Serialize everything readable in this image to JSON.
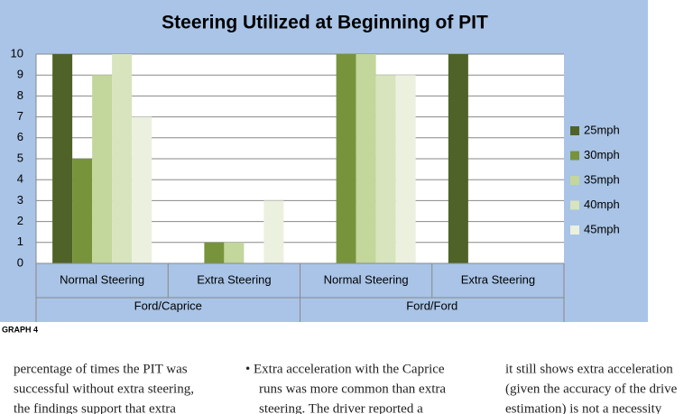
{
  "chart_data": {
    "type": "bar",
    "title": "Steering Utilized at Beginning of PIT",
    "categories": [
      "Normal Steering",
      "Extra Steering",
      "Normal Steering",
      "Extra Steering"
    ],
    "groups": [
      "Ford/Caprice",
      "Ford/Ford"
    ],
    "series": [
      {
        "name": "25mph",
        "color": "#4f6228",
        "values": [
          10,
          0,
          0,
          10
        ]
      },
      {
        "name": "30mph",
        "color": "#77933c",
        "values": [
          5,
          1,
          10,
          0
        ]
      },
      {
        "name": "35mph",
        "color": "#c3d69b",
        "values": [
          9,
          1,
          10,
          0
        ]
      },
      {
        "name": "40mph",
        "color": "#d7e4bd",
        "values": [
          10,
          0,
          9,
          0
        ]
      },
      {
        "name": "45mph",
        "color": "#ebf1de",
        "values": [
          7,
          3,
          9,
          0
        ]
      }
    ],
    "ylim": [
      0,
      10
    ],
    "yticks": [
      0,
      1,
      2,
      3,
      4,
      5,
      6,
      7,
      8,
      9,
      10
    ],
    "grid": true,
    "legend": "right"
  },
  "caption": "GRAPH 4",
  "columns": [
    [
      "percentage of times the PIT was",
      "successful without extra steering,",
      "the findings support that extra"
    ],
    [
      "• Extra acceleration with the Caprice",
      "runs was more common than extra",
      "steering. The driver reported a"
    ],
    [
      "it still shows extra acceleration",
      "(given the accuracy of the drive",
      "estimation) is not a necessity"
    ]
  ]
}
